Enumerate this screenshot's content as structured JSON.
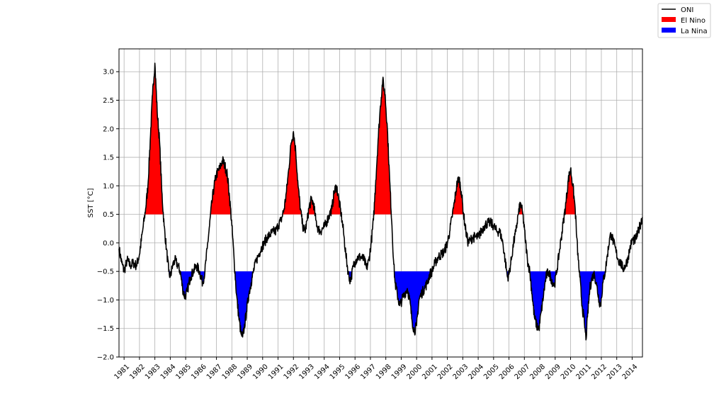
{
  "colors": {
    "oni_line": "#000000",
    "el_nino": "#ff0000",
    "la_nina": "#0000ff",
    "grid": "#b0b0b0"
  },
  "chart_data": {
    "type": "line",
    "title": "",
    "xlabel": "",
    "ylabel": "SST [°C]",
    "xlim": [
      1980.67,
      2014.67
    ],
    "ylim": [
      -2.0,
      3.4
    ],
    "yticks": [
      -2.0,
      -1.5,
      -1.0,
      -0.5,
      0.0,
      0.5,
      1.0,
      1.5,
      2.0,
      2.5,
      3.0
    ],
    "ytick_labels": [
      "−2.0",
      "−1.5",
      "−1.0",
      "−0.5",
      "0.0",
      "0.5",
      "1.0",
      "1.5",
      "2.0",
      "2.5",
      "3.0"
    ],
    "xticks": [
      1981,
      1982,
      1983,
      1984,
      1985,
      1986,
      1987,
      1988,
      1989,
      1990,
      1991,
      1992,
      1993,
      1994,
      1995,
      1996,
      1997,
      1998,
      1999,
      2000,
      2001,
      2002,
      2003,
      2004,
      2005,
      2006,
      2007,
      2008,
      2009,
      2010,
      2011,
      2012,
      2013,
      2014
    ],
    "xtick_labels": [
      "1981",
      "1982",
      "1983",
      "1984",
      "1985",
      "1986",
      "1987",
      "1988",
      "1989",
      "1990",
      "1991",
      "1992",
      "1993",
      "1994",
      "1995",
      "1996",
      "1997",
      "1998",
      "1999",
      "2000",
      "2001",
      "2002",
      "2003",
      "2004",
      "2005",
      "2006",
      "2007",
      "2008",
      "2009",
      "2010",
      "2011",
      "2012",
      "2013",
      "2014"
    ],
    "grid": true,
    "legend_position": "top-right",
    "thresholds": {
      "el_nino": 0.5,
      "la_nina": -0.5
    },
    "series": [
      {
        "name": "ONI",
        "points": [
          [
            1980.67,
            -0.1
          ],
          [
            1980.85,
            -0.35
          ],
          [
            1981.0,
            -0.5
          ],
          [
            1981.2,
            -0.3
          ],
          [
            1981.4,
            -0.4
          ],
          [
            1981.6,
            -0.35
          ],
          [
            1981.8,
            -0.4
          ],
          [
            1982.0,
            -0.2
          ],
          [
            1982.2,
            0.2
          ],
          [
            1982.4,
            0.6
          ],
          [
            1982.55,
            1.0
          ],
          [
            1982.7,
            1.8
          ],
          [
            1982.85,
            2.6
          ],
          [
            1983.0,
            3.15
          ],
          [
            1983.15,
            2.3
          ],
          [
            1983.3,
            1.8
          ],
          [
            1983.45,
            0.9
          ],
          [
            1983.6,
            0.3
          ],
          [
            1983.75,
            -0.1
          ],
          [
            1983.9,
            -0.5
          ],
          [
            1984.0,
            -0.6
          ],
          [
            1984.15,
            -0.4
          ],
          [
            1984.3,
            -0.3
          ],
          [
            1984.5,
            -0.4
          ],
          [
            1984.65,
            -0.5
          ],
          [
            1984.8,
            -0.8
          ],
          [
            1984.95,
            -0.95
          ],
          [
            1985.1,
            -0.85
          ],
          [
            1985.3,
            -0.6
          ],
          [
            1985.5,
            -0.5
          ],
          [
            1985.7,
            -0.4
          ],
          [
            1985.9,
            -0.5
          ],
          [
            1986.1,
            -0.7
          ],
          [
            1986.25,
            -0.5
          ],
          [
            1986.4,
            -0.1
          ],
          [
            1986.55,
            0.3
          ],
          [
            1986.7,
            0.7
          ],
          [
            1986.85,
            1.0
          ],
          [
            1987.0,
            1.2
          ],
          [
            1987.2,
            1.3
          ],
          [
            1987.4,
            1.45
          ],
          [
            1987.55,
            1.35
          ],
          [
            1987.7,
            1.2
          ],
          [
            1987.85,
            0.8
          ],
          [
            1988.0,
            0.3
          ],
          [
            1988.15,
            -0.3
          ],
          [
            1988.3,
            -0.9
          ],
          [
            1988.45,
            -1.3
          ],
          [
            1988.6,
            -1.6
          ],
          [
            1988.7,
            -1.65
          ],
          [
            1988.8,
            -1.5
          ],
          [
            1988.95,
            -1.2
          ],
          [
            1989.1,
            -0.9
          ],
          [
            1989.25,
            -0.7
          ],
          [
            1989.4,
            -0.5
          ],
          [
            1989.6,
            -0.3
          ],
          [
            1989.75,
            -0.2
          ],
          [
            1989.9,
            -0.1
          ],
          [
            1990.1,
            0.0
          ],
          [
            1990.3,
            0.1
          ],
          [
            1990.5,
            0.15
          ],
          [
            1990.7,
            0.2
          ],
          [
            1990.85,
            0.2
          ],
          [
            1991.0,
            0.3
          ],
          [
            1991.2,
            0.4
          ],
          [
            1991.4,
            0.6
          ],
          [
            1991.55,
            0.9
          ],
          [
            1991.7,
            1.3
          ],
          [
            1991.85,
            1.75
          ],
          [
            1992.0,
            1.95
          ],
          [
            1992.15,
            1.6
          ],
          [
            1992.3,
            1.0
          ],
          [
            1992.45,
            0.6
          ],
          [
            1992.6,
            0.3
          ],
          [
            1992.75,
            0.2
          ],
          [
            1992.9,
            0.4
          ],
          [
            1993.0,
            0.6
          ],
          [
            1993.15,
            0.75
          ],
          [
            1993.3,
            0.7
          ],
          [
            1993.45,
            0.4
          ],
          [
            1993.6,
            0.25
          ],
          [
            1993.75,
            0.2
          ],
          [
            1993.9,
            0.25
          ],
          [
            1994.05,
            0.3
          ],
          [
            1994.2,
            0.4
          ],
          [
            1994.35,
            0.5
          ],
          [
            1994.5,
            0.6
          ],
          [
            1994.65,
            0.9
          ],
          [
            1994.8,
            1.0
          ],
          [
            1994.95,
            0.75
          ],
          [
            1995.1,
            0.5
          ],
          [
            1995.25,
            0.2
          ],
          [
            1995.4,
            -0.2
          ],
          [
            1995.55,
            -0.5
          ],
          [
            1995.65,
            -0.65
          ],
          [
            1995.75,
            -0.6
          ],
          [
            1995.9,
            -0.4
          ],
          [
            1996.05,
            -0.3
          ],
          [
            1996.2,
            -0.25
          ],
          [
            1996.4,
            -0.25
          ],
          [
            1996.6,
            -0.3
          ],
          [
            1996.75,
            -0.45
          ],
          [
            1996.9,
            -0.3
          ],
          [
            1997.05,
            0.0
          ],
          [
            1997.2,
            0.4
          ],
          [
            1997.35,
            1.1
          ],
          [
            1997.5,
            1.8
          ],
          [
            1997.65,
            2.4
          ],
          [
            1997.8,
            2.85
          ],
          [
            1997.95,
            2.6
          ],
          [
            1998.1,
            2.0
          ],
          [
            1998.25,
            1.1
          ],
          [
            1998.4,
            0.3
          ],
          [
            1998.5,
            -0.3
          ],
          [
            1998.6,
            -0.7
          ],
          [
            1998.75,
            -0.9
          ],
          [
            1998.9,
            -1.1
          ],
          [
            1999.05,
            -1.0
          ],
          [
            1999.2,
            -0.9
          ],
          [
            1999.4,
            -0.8
          ],
          [
            1999.55,
            -1.0
          ],
          [
            1999.7,
            -1.35
          ],
          [
            1999.85,
            -1.55
          ],
          [
            2000.0,
            -1.45
          ],
          [
            2000.15,
            -1.0
          ],
          [
            2000.3,
            -0.9
          ],
          [
            2000.5,
            -0.8
          ],
          [
            2000.7,
            -0.7
          ],
          [
            2000.85,
            -0.55
          ],
          [
            2001.0,
            -0.5
          ],
          [
            2001.2,
            -0.35
          ],
          [
            2001.4,
            -0.25
          ],
          [
            2001.6,
            -0.2
          ],
          [
            2001.8,
            -0.15
          ],
          [
            2002.0,
            0.0
          ],
          [
            2002.15,
            0.2
          ],
          [
            2002.3,
            0.45
          ],
          [
            2002.45,
            0.7
          ],
          [
            2002.6,
            1.0
          ],
          [
            2002.75,
            1.15
          ],
          [
            2002.9,
            0.9
          ],
          [
            2003.05,
            0.5
          ],
          [
            2003.2,
            0.2
          ],
          [
            2003.35,
            0.0
          ],
          [
            2003.5,
            0.05
          ],
          [
            2003.65,
            0.1
          ],
          [
            2003.8,
            0.1
          ],
          [
            2004.0,
            0.1
          ],
          [
            2004.2,
            0.2
          ],
          [
            2004.4,
            0.3
          ],
          [
            2004.6,
            0.35
          ],
          [
            2004.8,
            0.35
          ],
          [
            2005.0,
            0.3
          ],
          [
            2005.2,
            0.2
          ],
          [
            2005.4,
            0.2
          ],
          [
            2005.6,
            0.0
          ],
          [
            2005.75,
            -0.3
          ],
          [
            2005.9,
            -0.6
          ],
          [
            2006.0,
            -0.55
          ],
          [
            2006.15,
            -0.3
          ],
          [
            2006.3,
            0.0
          ],
          [
            2006.45,
            0.2
          ],
          [
            2006.6,
            0.5
          ],
          [
            2006.75,
            0.7
          ],
          [
            2006.9,
            0.5
          ],
          [
            2007.05,
            0.1
          ],
          [
            2007.2,
            -0.3
          ],
          [
            2007.35,
            -0.5
          ],
          [
            2007.5,
            -0.9
          ],
          [
            2007.65,
            -1.3
          ],
          [
            2007.8,
            -1.45
          ],
          [
            2007.95,
            -1.5
          ],
          [
            2008.1,
            -1.2
          ],
          [
            2008.25,
            -0.9
          ],
          [
            2008.4,
            -0.6
          ],
          [
            2008.55,
            -0.5
          ],
          [
            2008.7,
            -0.6
          ],
          [
            2008.85,
            -0.7
          ],
          [
            2008.95,
            -0.75
          ],
          [
            2009.1,
            -0.5
          ],
          [
            2009.25,
            -0.2
          ],
          [
            2009.4,
            0.1
          ],
          [
            2009.55,
            0.4
          ],
          [
            2009.7,
            0.7
          ],
          [
            2009.85,
            1.1
          ],
          [
            2010.0,
            1.3
          ],
          [
            2010.15,
            1.0
          ],
          [
            2010.3,
            0.6
          ],
          [
            2010.4,
            0.1
          ],
          [
            2010.5,
            -0.3
          ],
          [
            2010.6,
            -0.6
          ],
          [
            2010.75,
            -1.1
          ],
          [
            2010.9,
            -1.4
          ],
          [
            2011.0,
            -1.7
          ],
          [
            2011.1,
            -1.3
          ],
          [
            2011.25,
            -0.8
          ],
          [
            2011.4,
            -0.6
          ],
          [
            2011.55,
            -0.55
          ],
          [
            2011.7,
            -0.75
          ],
          [
            2011.85,
            -1.0
          ],
          [
            2011.95,
            -1.1
          ],
          [
            2012.1,
            -0.7
          ],
          [
            2012.25,
            -0.5
          ],
          [
            2012.4,
            -0.2
          ],
          [
            2012.55,
            0.1
          ],
          [
            2012.65,
            0.15
          ],
          [
            2012.8,
            0.0
          ],
          [
            2012.95,
            -0.15
          ],
          [
            2013.1,
            -0.3
          ],
          [
            2013.25,
            -0.35
          ],
          [
            2013.4,
            -0.45
          ],
          [
            2013.55,
            -0.4
          ],
          [
            2013.7,
            -0.3
          ],
          [
            2013.85,
            -0.1
          ],
          [
            2014.0,
            0.05
          ],
          [
            2014.2,
            0.05
          ],
          [
            2014.35,
            0.15
          ],
          [
            2014.5,
            0.3
          ],
          [
            2014.67,
            0.45
          ]
        ]
      }
    ],
    "legend": [
      {
        "label": "ONI",
        "kind": "line",
        "color_key": "oni_line"
      },
      {
        "label": "El Nino",
        "kind": "patch",
        "color_key": "el_nino"
      },
      {
        "label": "La Nina",
        "kind": "patch",
        "color_key": "la_nina"
      }
    ]
  }
}
